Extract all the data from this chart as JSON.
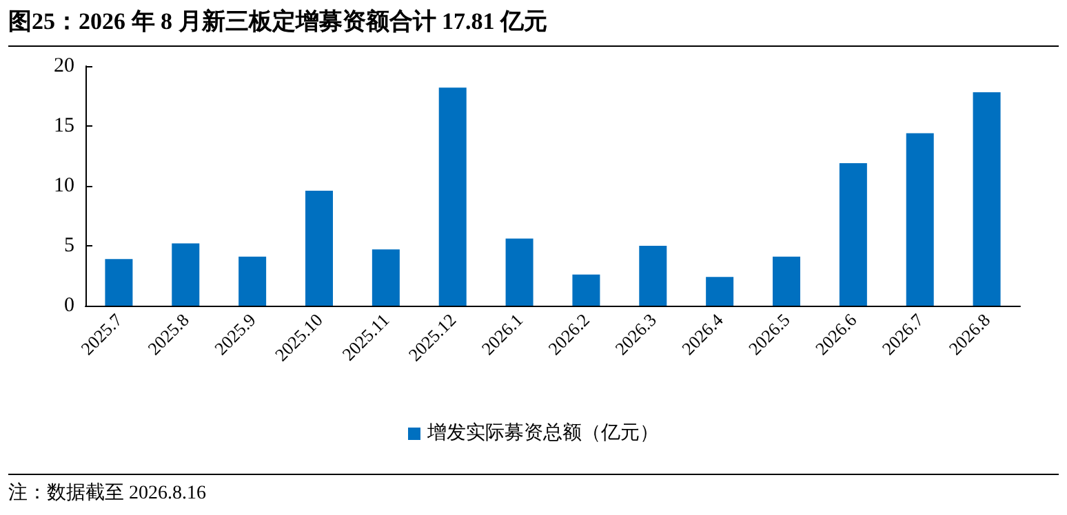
{
  "chart_data": {
    "type": "bar",
    "title": "图25：2026 年 8 月新三板定增募资额合计 17.81 亿元",
    "categories": [
      "2025.7",
      "2025.8",
      "2025.9",
      "2025.10",
      "2025.11",
      "2025.12",
      "2026.1",
      "2026.2",
      "2026.3",
      "2026.4",
      "2026.5",
      "2026.6",
      "2026.7",
      "2026.8"
    ],
    "series": [
      {
        "name": "增发实际募资总额（亿元）",
        "color": "#0070c0",
        "values": [
          3.9,
          5.2,
          4.1,
          9.6,
          4.7,
          18.2,
          5.6,
          2.6,
          5.0,
          2.4,
          4.1,
          11.9,
          14.4,
          17.81
        ]
      }
    ],
    "ylim": [
      0,
      20
    ],
    "yticks": [
      0,
      5,
      10,
      15,
      20
    ],
    "grid": false,
    "legend": "bottom",
    "annotations": [
      "注：数据截至 2026.8.16"
    ]
  }
}
